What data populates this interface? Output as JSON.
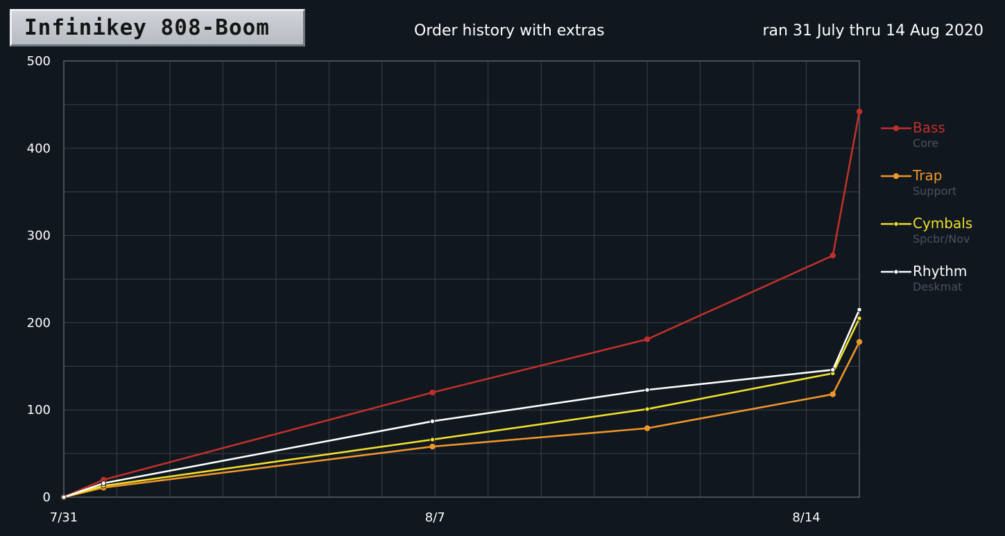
{
  "badge": {
    "text": "Infinikey 808-Boom"
  },
  "header": {
    "title": "Order history with extras",
    "subtitle": "ran 31 July thru 14 Aug 2020"
  },
  "colors": {
    "background": "#10171f",
    "grid": "#3a414b",
    "axis": "#5a616b",
    "text": "#ffffff"
  },
  "chart_data": {
    "type": "line",
    "title": "Order history with extras",
    "subtitle": "ran 31 July thru 14 Aug 2020",
    "xlabel": "",
    "ylabel": "",
    "x_unit": "days since 7/31",
    "xlim": [
      0,
      15
    ],
    "ylim": [
      0,
      500
    ],
    "x_ticks": [
      {
        "value": 0,
        "label": "7/31"
      },
      {
        "value": 7,
        "label": "8/7"
      },
      {
        "value": 14,
        "label": "8/14"
      }
    ],
    "y_ticks": [
      0,
      100,
      200,
      300,
      400,
      500
    ],
    "grid": true,
    "legend_position": "right",
    "series": [
      {
        "name": "Bass",
        "subtitle": "Core",
        "color": "#c0302a",
        "marker": "dot",
        "points": [
          [
            0,
            0
          ],
          [
            0.75,
            20
          ],
          [
            6.95,
            120
          ],
          [
            11,
            181
          ],
          [
            14.5,
            277
          ],
          [
            15,
            442
          ]
        ]
      },
      {
        "name": "Trap",
        "subtitle": "Support",
        "color": "#f0962a",
        "marker": "dot",
        "points": [
          [
            0,
            0
          ],
          [
            0.75,
            11
          ],
          [
            6.95,
            58
          ],
          [
            11,
            79
          ],
          [
            14.5,
            118
          ],
          [
            15,
            178
          ]
        ]
      },
      {
        "name": "Cymbals",
        "subtitle": "Spcbr/Nov",
        "color": "#f2e02a",
        "marker": "small-dot",
        "points": [
          [
            0,
            0
          ],
          [
            0.75,
            13
          ],
          [
            6.95,
            66
          ],
          [
            11,
            101
          ],
          [
            14.5,
            142
          ],
          [
            15,
            205
          ]
        ]
      },
      {
        "name": "Rhythm",
        "subtitle": "Deskmat",
        "color": "#ffffff",
        "marker": "small-dot",
        "points": [
          [
            0,
            0
          ],
          [
            0.75,
            16
          ],
          [
            6.95,
            87
          ],
          [
            11,
            123
          ],
          [
            14.5,
            146
          ],
          [
            15,
            215
          ]
        ]
      }
    ]
  }
}
